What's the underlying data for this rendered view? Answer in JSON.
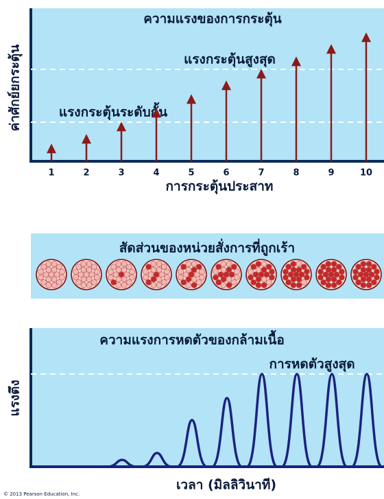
{
  "chart_data": [
    {
      "type": "arrow",
      "title": "ความแรงของการกระตุ้น",
      "y_label": "ค่าศักย์ยกระตุ้น",
      "x_label": "การกระตุ้นประสาท",
      "categories": [
        "1",
        "2",
        "3",
        "4",
        "5",
        "6",
        "7",
        "8",
        "9",
        "10"
      ],
      "values": [
        23,
        37,
        55,
        75,
        95,
        115,
        132,
        150,
        168,
        185
      ],
      "color": "#8b1a1a",
      "ylim": [
        0,
        220
      ],
      "reference_lines": [
        {
          "label": "แรงกระตุ้นระดับกั้น",
          "value": 57
        },
        {
          "label": "แรงกระตุ้นสูงสุด",
          "value": 134
        }
      ]
    },
    {
      "type": "recruitment",
      "title": "สัดส่วนของหน่วยสั่งการที่ถูกเร้า",
      "values": [
        0,
        0,
        0.1,
        0.2,
        0.35,
        0.5,
        0.7,
        0.85,
        1,
        1
      ],
      "color": "#c62828"
    },
    {
      "type": "twitch",
      "title": "ความแรงการหดตัวของกล้ามเนื้อ",
      "y_label": "แรงตึง",
      "x_label": "เวลา (มิลลิวินาที)",
      "values": [
        0,
        0,
        10,
        20,
        68,
        100,
        135,
        135,
        135,
        135
      ],
      "color": "#1a237e",
      "ylim": [
        0,
        200
      ],
      "reference_lines": [
        {
          "label": "การหดตัวสูงสุด",
          "value": 135
        }
      ]
    }
  ],
  "copyright": "© 2013 Pearson Education, Inc."
}
